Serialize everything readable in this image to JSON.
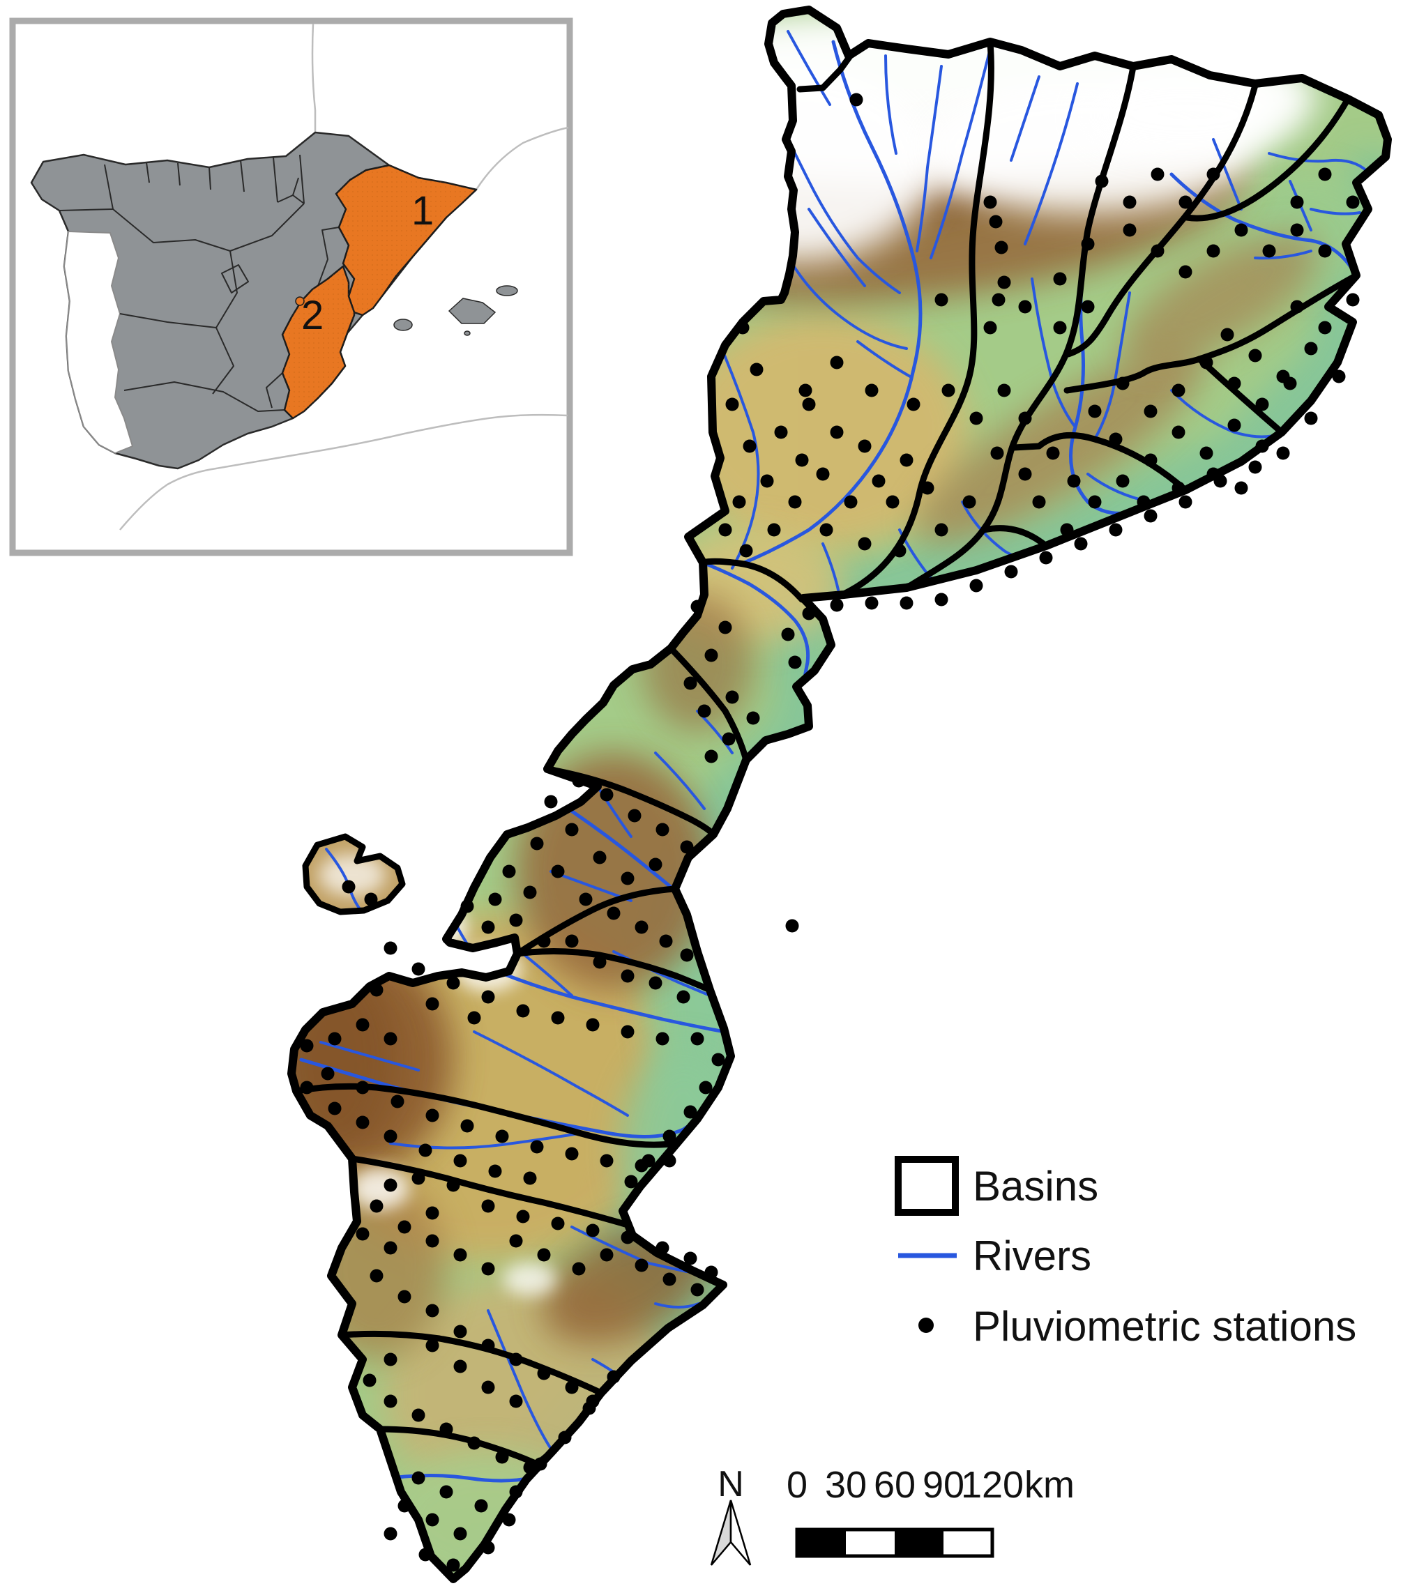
{
  "figure": {
    "background": "#ffffff"
  },
  "inset": {
    "frame_color": "#ABABAB",
    "background": "#ffffff",
    "land_color": "#8F9396",
    "land_border_color": "#2A2A2A",
    "neighbor_coast_color": "#BDBDBD",
    "highlight_color": "#E87722",
    "regions": [
      {
        "id": "region-1",
        "label": "1"
      },
      {
        "id": "region-2",
        "label": "2"
      }
    ]
  },
  "legend": {
    "items": [
      {
        "label": "Basins",
        "swatch": "rectangle-outline",
        "color": "#000000"
      },
      {
        "label": "Rivers",
        "swatch": "line",
        "color": "#2857DF"
      },
      {
        "label": "Pluviometric stations",
        "swatch": "dot",
        "color": "#000000"
      }
    ]
  },
  "scale_bar": {
    "ticks": [
      "0",
      "30",
      "60",
      "90",
      "120"
    ],
    "unit": "km",
    "segment_colors": [
      "#000000",
      "#ffffff",
      "#000000",
      "#ffffff"
    ],
    "border_color": "#000000"
  },
  "north_arrow": {
    "label": "N"
  },
  "map": {
    "colors": {
      "basin_outline": "#000000",
      "river": "#2857DF",
      "station": "#000000",
      "sea": "#ffffff",
      "snow": "#ffffff",
      "lowland": "#A4CB88",
      "midland": "#D2B86F",
      "highland": "#96683A",
      "coastal_plain": "#7FC49C"
    },
    "station_radius": 9.5,
    "stations": [
      [
        1228,
        143
      ],
      [
        1420,
        290
      ],
      [
        1428,
        318
      ],
      [
        1436,
        355
      ],
      [
        1440,
        405
      ],
      [
        1432,
        430
      ],
      [
        1065,
        470
      ],
      [
        1085,
        530
      ],
      [
        1050,
        580
      ],
      [
        1075,
        640
      ],
      [
        1100,
        690
      ],
      [
        1060,
        720
      ],
      [
        1040,
        760
      ],
      [
        1070,
        790
      ],
      [
        1110,
        760
      ],
      [
        1140,
        720
      ],
      [
        1150,
        660
      ],
      [
        1120,
        620
      ],
      [
        1160,
        580
      ],
      [
        1200,
        620
      ],
      [
        1180,
        680
      ],
      [
        1220,
        720
      ],
      [
        1260,
        690
      ],
      [
        1240,
        640
      ],
      [
        1300,
        660
      ],
      [
        1280,
        720
      ],
      [
        1330,
        700
      ],
      [
        1185,
        760
      ],
      [
        1240,
        780
      ],
      [
        1290,
        790
      ],
      [
        1350,
        760
      ],
      [
        1390,
        720
      ],
      [
        1155,
        560
      ],
      [
        1200,
        520
      ],
      [
        1250,
        560
      ],
      [
        1310,
        580
      ],
      [
        1360,
        560
      ],
      [
        1400,
        600
      ],
      [
        1440,
        560
      ],
      [
        1470,
        600
      ],
      [
        1430,
        650
      ],
      [
        1470,
        680
      ],
      [
        1510,
        650
      ],
      [
        1540,
        690
      ],
      [
        1490,
        720
      ],
      [
        1530,
        760
      ],
      [
        1570,
        720
      ],
      [
        1610,
        690
      ],
      [
        1650,
        660
      ],
      [
        1600,
        630
      ],
      [
        1570,
        590
      ],
      [
        1610,
        550
      ],
      [
        1650,
        590
      ],
      [
        1690,
        620
      ],
      [
        1730,
        650
      ],
      [
        1690,
        560
      ],
      [
        1730,
        520
      ],
      [
        1770,
        550
      ],
      [
        1810,
        580
      ],
      [
        1850,
        550
      ],
      [
        1770,
        610
      ],
      [
        1810,
        640
      ],
      [
        1740,
        680
      ],
      [
        1780,
        700
      ],
      [
        1690,
        700
      ],
      [
        1640,
        720
      ],
      [
        1350,
        430
      ],
      [
        1420,
        470
      ],
      [
        1470,
        440
      ],
      [
        1520,
        470
      ],
      [
        1560,
        440
      ],
      [
        1520,
        400
      ],
      [
        1560,
        350
      ],
      [
        1620,
        330
      ],
      [
        1660,
        360
      ],
      [
        1700,
        390
      ],
      [
        1740,
        360
      ],
      [
        1780,
        330
      ],
      [
        1820,
        360
      ],
      [
        1860,
        330
      ],
      [
        1900,
        360
      ],
      [
        1860,
        290
      ],
      [
        1900,
        250
      ],
      [
        1940,
        290
      ],
      [
        1700,
        290
      ],
      [
        1740,
        250
      ],
      [
        1660,
        250
      ],
      [
        1620,
        290
      ],
      [
        1580,
        260
      ],
      [
        1940,
        430
      ],
      [
        1900,
        470
      ],
      [
        1860,
        440
      ],
      [
        1880,
        500
      ],
      [
        1920,
        540
      ],
      [
        1840,
        540
      ],
      [
        1800,
        510
      ],
      [
        1760,
        480
      ],
      [
        1880,
        600
      ],
      [
        1840,
        650
      ],
      [
        1800,
        670
      ],
      [
        1750,
        690
      ],
      [
        1700,
        720
      ],
      [
        1650,
        740
      ],
      [
        1600,
        760
      ],
      [
        1550,
        780
      ],
      [
        1500,
        800
      ],
      [
        1450,
        820
      ],
      [
        1400,
        840
      ],
      [
        1350,
        860
      ],
      [
        1300,
        865
      ],
      [
        1250,
        865
      ],
      [
        1200,
        868
      ],
      [
        1160,
        880
      ],
      [
        1130,
        910
      ],
      [
        1140,
        950
      ],
      [
        1040,
        900
      ],
      [
        1000,
        870
      ],
      [
        1020,
        940
      ],
      [
        990,
        980
      ],
      [
        1010,
        1020
      ],
      [
        1050,
        1000
      ],
      [
        1080,
        1030
      ],
      [
        1045,
        1060
      ],
      [
        1020,
        1085
      ],
      [
        1136,
        1328
      ],
      [
        830,
        1120
      ],
      [
        870,
        1140
      ],
      [
        910,
        1170
      ],
      [
        950,
        1190
      ],
      [
        985,
        1215
      ],
      [
        940,
        1240
      ],
      [
        900,
        1260
      ],
      [
        860,
        1230
      ],
      [
        820,
        1190
      ],
      [
        790,
        1150
      ],
      [
        770,
        1210
      ],
      [
        800,
        1250
      ],
      [
        840,
        1290
      ],
      [
        880,
        1310
      ],
      [
        920,
        1330
      ],
      [
        955,
        1350
      ],
      [
        985,
        1370
      ],
      [
        760,
        1280
      ],
      [
        730,
        1250
      ],
      [
        710,
        1290
      ],
      [
        740,
        1320
      ],
      [
        780,
        1350
      ],
      [
        700,
        1330
      ],
      [
        670,
        1300
      ],
      [
        820,
        1350
      ],
      [
        860,
        1380
      ],
      [
        900,
        1400
      ],
      [
        940,
        1410
      ],
      [
        980,
        1430
      ],
      [
        500,
        1272
      ],
      [
        532,
        1290
      ],
      [
        560,
        1360
      ],
      [
        600,
        1390
      ],
      [
        650,
        1410
      ],
      [
        700,
        1430
      ],
      [
        750,
        1450
      ],
      [
        800,
        1460
      ],
      [
        850,
        1470
      ],
      [
        900,
        1480
      ],
      [
        950,
        1490
      ],
      [
        1000,
        1490
      ],
      [
        620,
        1440
      ],
      [
        680,
        1460
      ],
      [
        540,
        1420
      ],
      [
        520,
        1470
      ],
      [
        560,
        1490
      ],
      [
        480,
        1490
      ],
      [
        440,
        1500
      ],
      [
        470,
        1540
      ],
      [
        520,
        1560
      ],
      [
        570,
        1580
      ],
      [
        620,
        1600
      ],
      [
        670,
        1615
      ],
      [
        720,
        1630
      ],
      [
        770,
        1645
      ],
      [
        820,
        1655
      ],
      [
        870,
        1665
      ],
      [
        920,
        1672
      ],
      [
        960,
        1665
      ],
      [
        560,
        1630
      ],
      [
        610,
        1650
      ],
      [
        660,
        1665
      ],
      [
        710,
        1680
      ],
      [
        760,
        1690
      ],
      [
        520,
        1610
      ],
      [
        480,
        1590
      ],
      [
        440,
        1560
      ],
      [
        600,
        1690
      ],
      [
        650,
        1700
      ],
      [
        1030,
        1520
      ],
      [
        1012,
        1560
      ],
      [
        990,
        1595
      ],
      [
        960,
        1630
      ],
      [
        930,
        1665
      ],
      [
        905,
        1695
      ],
      [
        700,
        1730
      ],
      [
        750,
        1745
      ],
      [
        800,
        1755
      ],
      [
        850,
        1765
      ],
      [
        900,
        1775
      ],
      [
        950,
        1790
      ],
      [
        990,
        1805
      ],
      [
        1020,
        1825
      ],
      [
        870,
        1800
      ],
      [
        920,
        1815
      ],
      [
        960,
        1835
      ],
      [
        1000,
        1850
      ],
      [
        830,
        1820
      ],
      [
        780,
        1800
      ],
      [
        740,
        1780
      ],
      [
        560,
        1700
      ],
      [
        540,
        1730
      ],
      [
        580,
        1760
      ],
      [
        620,
        1780
      ],
      [
        660,
        1800
      ],
      [
        700,
        1820
      ],
      [
        620,
        1740
      ],
      [
        560,
        1790
      ],
      [
        540,
        1830
      ],
      [
        580,
        1860
      ],
      [
        620,
        1880
      ],
      [
        520,
        1770
      ],
      [
        660,
        1910
      ],
      [
        700,
        1930
      ],
      [
        740,
        1950
      ],
      [
        780,
        1970
      ],
      [
        820,
        1990
      ],
      [
        850,
        2010
      ],
      [
        700,
        1990
      ],
      [
        740,
        2010
      ],
      [
        660,
        1960
      ],
      [
        620,
        1930
      ],
      [
        560,
        1950
      ],
      [
        530,
        1980
      ],
      [
        560,
        2010
      ],
      [
        600,
        2030
      ],
      [
        640,
        2050
      ],
      [
        680,
        2070
      ],
      [
        720,
        2090
      ],
      [
        760,
        2105
      ],
      [
        880,
        1975
      ],
      [
        845,
        2020
      ],
      [
        810,
        2062
      ],
      [
        775,
        2100
      ],
      [
        740,
        2140
      ],
      [
        600,
        2120
      ],
      [
        640,
        2140
      ],
      [
        690,
        2160
      ],
      [
        730,
        2180
      ],
      [
        620,
        2180
      ],
      [
        660,
        2200
      ],
      [
        700,
        2220
      ],
      [
        580,
        2160
      ],
      [
        560,
        2200
      ],
      [
        610,
        2230
      ],
      [
        650,
        2245
      ]
    ]
  }
}
